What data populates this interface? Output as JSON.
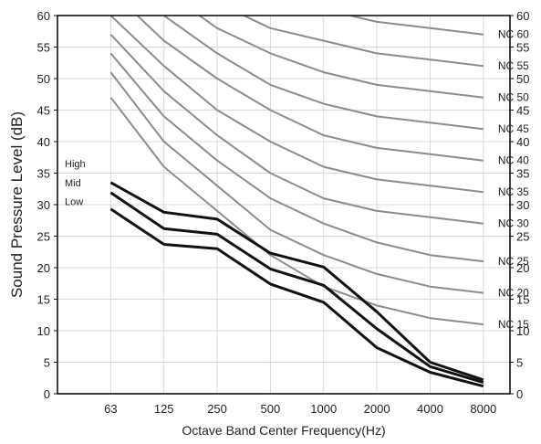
{
  "chart_data": {
    "type": "line",
    "title": "",
    "xlabel": "Octave Band Center Frequency(Hz)",
    "ylabel": "Sound Pressure Level (dB)",
    "x": [
      "63",
      "125",
      "250",
      "500",
      "1000",
      "2000",
      "4000",
      "8000"
    ],
    "ylim": [
      0,
      60
    ],
    "yticks": [
      0,
      5,
      10,
      15,
      20,
      25,
      30,
      35,
      40,
      45,
      50,
      55,
      60
    ],
    "grid": true,
    "nc_curves": [
      {
        "name": "NC 15",
        "values": [
          47,
          36,
          29,
          22,
          17,
          14,
          12,
          11
        ]
      },
      {
        "name": "NC 20",
        "values": [
          51,
          40,
          33,
          26,
          22,
          19,
          17,
          16
        ]
      },
      {
        "name": "NC 25",
        "values": [
          54,
          44,
          37,
          31,
          27,
          24,
          22,
          21
        ]
      },
      {
        "name": "NC 30",
        "values": [
          57,
          48,
          41,
          35,
          31,
          29,
          28,
          27
        ]
      },
      {
        "name": "NC 35",
        "values": [
          60,
          52,
          45,
          40,
          36,
          34,
          33,
          32
        ]
      },
      {
        "name": "NC 40",
        "values": [
          64,
          56,
          50,
          45,
          41,
          39,
          38,
          37
        ]
      },
      {
        "name": "NC 45",
        "values": [
          67,
          60,
          54,
          49,
          46,
          44,
          43,
          42
        ]
      },
      {
        "name": "NC 50",
        "values": [
          71,
          64,
          58,
          54,
          51,
          49,
          48,
          47
        ]
      },
      {
        "name": "NC 55",
        "values": [
          74,
          67,
          62,
          58,
          56,
          54,
          53,
          52
        ]
      },
      {
        "name": "NC 60",
        "values": [
          77,
          71,
          67,
          63,
          61,
          59,
          58,
          57
        ]
      }
    ],
    "series": [
      {
        "name": "High",
        "values": [
          33.5,
          28.8,
          27.7,
          22.3,
          20.1,
          13.0,
          5.0,
          2.2
        ]
      },
      {
        "name": "Mid",
        "values": [
          31.9,
          26.2,
          25.3,
          19.8,
          17.2,
          10.3,
          4.3,
          1.8
        ]
      },
      {
        "name": "Low",
        "values": [
          29.3,
          23.7,
          23.0,
          17.4,
          14.5,
          7.3,
          3.4,
          1.2
        ]
      }
    ],
    "colors": {
      "nc_line": "#8c8c8c",
      "measured_line": "#111111",
      "grid": "#d9d9d9"
    }
  }
}
